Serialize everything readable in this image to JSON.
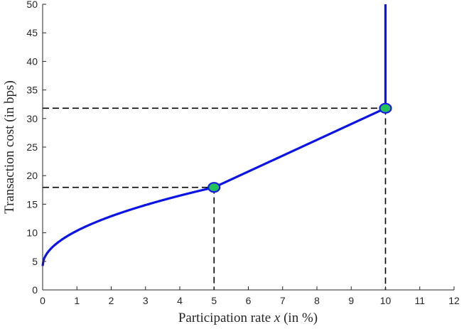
{
  "chart_data": {
    "type": "line",
    "title": "",
    "xlabel": {
      "before": "Participation rate ",
      "var": "x",
      "after": " (in %)"
    },
    "ylabel": "Transaction cost (in bps)",
    "xlim": [
      0,
      12
    ],
    "ylim": [
      0,
      50
    ],
    "x_ticks": [
      0,
      1,
      2,
      3,
      4,
      5,
      6,
      7,
      8,
      9,
      10,
      11,
      12
    ],
    "y_ticks": [
      0,
      5,
      10,
      15,
      20,
      25,
      30,
      35,
      40,
      45,
      50
    ],
    "grid": false,
    "series": [
      {
        "kind": "curve",
        "segments": [
          {
            "model": "sqrt",
            "x_range": [
              0,
              5
            ],
            "formula": "4.2 + 6.15*sqrt(x)"
          },
          {
            "model": "linear",
            "points": [
              [
                5,
                17.95
              ],
              [
                10,
                31.8
              ]
            ]
          },
          {
            "model": "vertical",
            "x": 10,
            "y_range": [
              31.8,
              50
            ]
          }
        ],
        "color": "#0a14e6"
      }
    ],
    "markers": [
      {
        "x": 5,
        "y": 17.95,
        "fill": "#22c45a",
        "edge": "#1a1ae6"
      },
      {
        "x": 10,
        "y": 31.8,
        "fill": "#22c45a",
        "edge": "#1a1ae6"
      }
    ],
    "reference_lines": [
      {
        "x": 5,
        "y": 17.95,
        "style": "dashed",
        "color": "#000000"
      },
      {
        "x": 10,
        "y": 31.8,
        "style": "dashed",
        "color": "#000000"
      }
    ]
  }
}
